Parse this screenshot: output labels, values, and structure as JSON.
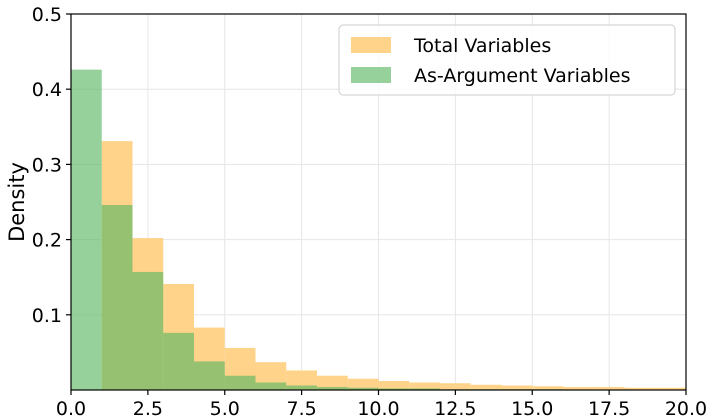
{
  "chart_data": {
    "type": "bar",
    "title": "",
    "xlabel": "",
    "ylabel": "Density",
    "xlim": [
      0,
      20
    ],
    "ylim": [
      0,
      0.5
    ],
    "xticks": [
      0,
      2.5,
      5,
      7.5,
      10,
      12.5,
      15,
      17.5,
      20
    ],
    "xtick_labels": [
      "0.0",
      "2.5",
      "5.0",
      "7.5",
      "10.0",
      "12.5",
      "15.0",
      "17.5",
      "20.0"
    ],
    "yticks": [
      0.1,
      0.2,
      0.3,
      0.4,
      0.5
    ],
    "ytick_labels": [
      "0.1",
      "0.2",
      "0.3",
      "0.4",
      "0.5"
    ],
    "grid": true,
    "legend_position": "top-right",
    "bin_edges": [
      0,
      1,
      2,
      3,
      4,
      5,
      6,
      7,
      8,
      9,
      10,
      11,
      12,
      13,
      14,
      15,
      16,
      17,
      18,
      19,
      20
    ],
    "series": [
      {
        "name": "Total Variables",
        "color": "#ffd38a",
        "opacity": 1,
        "values": [
          0.0,
          0.331,
          0.202,
          0.141,
          0.083,
          0.056,
          0.037,
          0.026,
          0.019,
          0.015,
          0.012,
          0.01,
          0.009,
          0.007,
          0.006,
          0.005,
          0.004,
          0.004,
          0.003,
          0.003
        ]
      },
      {
        "name": "As-Argument Variables",
        "color": "#5db764",
        "opacity": 0.65,
        "values": [
          0.426,
          0.246,
          0.157,
          0.076,
          0.038,
          0.019,
          0.01,
          0.006,
          0.004,
          0.003,
          0.002,
          0.002,
          0.001,
          0.001,
          0.001,
          0.001,
          0.0,
          0.0,
          0.0,
          0.0
        ]
      }
    ]
  }
}
